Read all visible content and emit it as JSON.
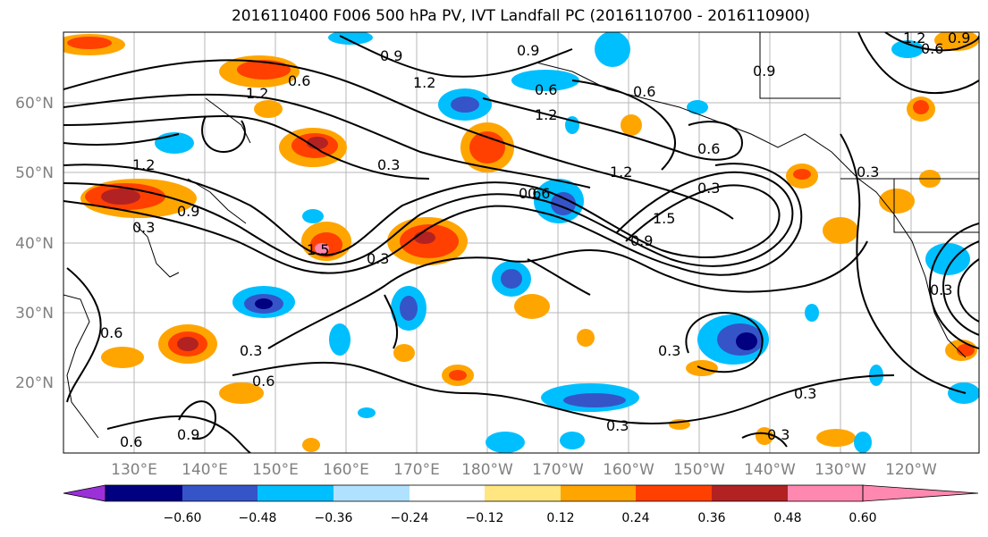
{
  "title": "2016110400 F006 500 hPa PV, IVT Landfall PC (2016110700 - 2016110900)",
  "map": {
    "lat_labels": [
      "60°N",
      "50°N",
      "40°N",
      "30°N",
      "20°N"
    ],
    "lon_labels": [
      "130°E",
      "140°E",
      "150°E",
      "160°E",
      "170°E",
      "180°W",
      "170°W",
      "160°W",
      "150°W",
      "140°W",
      "130°W",
      "120°W"
    ],
    "contour_labels": [
      "0.6",
      "0.9",
      "1.2",
      "0.6",
      "0.9",
      "1.2",
      "0.6",
      "1.2",
      "0.9",
      "1.2",
      "1.2",
      "0.3",
      "0.6",
      "0.3",
      "0.9",
      "0.6",
      "1.5",
      "0.3",
      "0.9",
      "0.6",
      "0.3",
      "1.5",
      "0.3",
      "0.3",
      "0.6",
      "0.6",
      "0.3",
      "0.3",
      "0.3",
      "0.9",
      "0.6",
      "0.3",
      "0.3",
      "1.2",
      "0.9",
      "0.6"
    ]
  },
  "colorbar": {
    "colors": [
      "#9b30d9",
      "#000080",
      "#3554c8",
      "#00bfff",
      "#b0e2ff",
      "#ffffff",
      "#ffe680",
      "#ffa500",
      "#ff4000",
      "#b22222",
      "#ff88b0"
    ],
    "tick_labels": [
      "−0.60",
      "−0.48",
      "−0.36",
      "−0.24",
      "−0.12",
      "0.12",
      "0.24",
      "0.36",
      "0.48",
      "0.60"
    ]
  }
}
